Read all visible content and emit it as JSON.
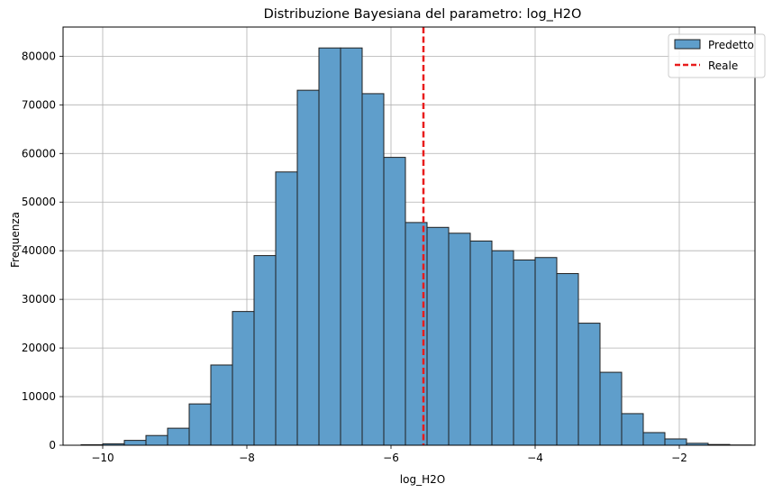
{
  "chart_data": {
    "type": "bar",
    "title": "Distribuzione Bayesiana del parametro: log_H2O",
    "xlabel": "log_H2O",
    "ylabel": "Frequenza",
    "xlim": [
      -10.55,
      -0.95
    ],
    "ylim": [
      0,
      86000
    ],
    "xticks": [
      -10,
      -8,
      -6,
      -4,
      -2
    ],
    "xtick_labels": [
      "−10",
      "−8",
      "−6",
      "−4",
      "−2"
    ],
    "yticks": [
      0,
      10000,
      20000,
      30000,
      40000,
      50000,
      60000,
      70000,
      80000
    ],
    "ytick_labels": [
      "0",
      "10000",
      "20000",
      "30000",
      "40000",
      "50000",
      "60000",
      "70000",
      "80000"
    ],
    "grid": true,
    "legend_position": "top-right",
    "bin_edges": [
      -10.3,
      -10.0,
      -9.7,
      -9.4,
      -9.1,
      -8.8,
      -8.5,
      -8.2,
      -7.9,
      -7.6,
      -7.3,
      -7.0,
      -6.7,
      -6.4,
      -6.1,
      -5.8,
      -5.5,
      -5.2,
      -4.9,
      -4.6,
      -4.3,
      -4.0,
      -3.7,
      -3.4,
      -3.1,
      -2.8,
      -2.5,
      -2.2,
      -1.9,
      -1.6,
      -1.3,
      -1.0
    ],
    "series": [
      {
        "name": "Predetto",
        "type": "histogram",
        "color": "#5f9ecb",
        "edgecolor": "#1f1f1f",
        "values": [
          100,
          300,
          1000,
          2000,
          3500,
          8500,
          16500,
          27500,
          39000,
          56200,
          73000,
          81700,
          81700,
          72300,
          59200,
          45800,
          44800,
          43600,
          42000,
          40000,
          38100,
          38600,
          35300,
          25100,
          15000,
          6500,
          2600,
          1300,
          400,
          150,
          50
        ]
      },
      {
        "name": "Reale",
        "type": "vline",
        "color": "#e81c1c",
        "x": -5.55
      }
    ]
  }
}
